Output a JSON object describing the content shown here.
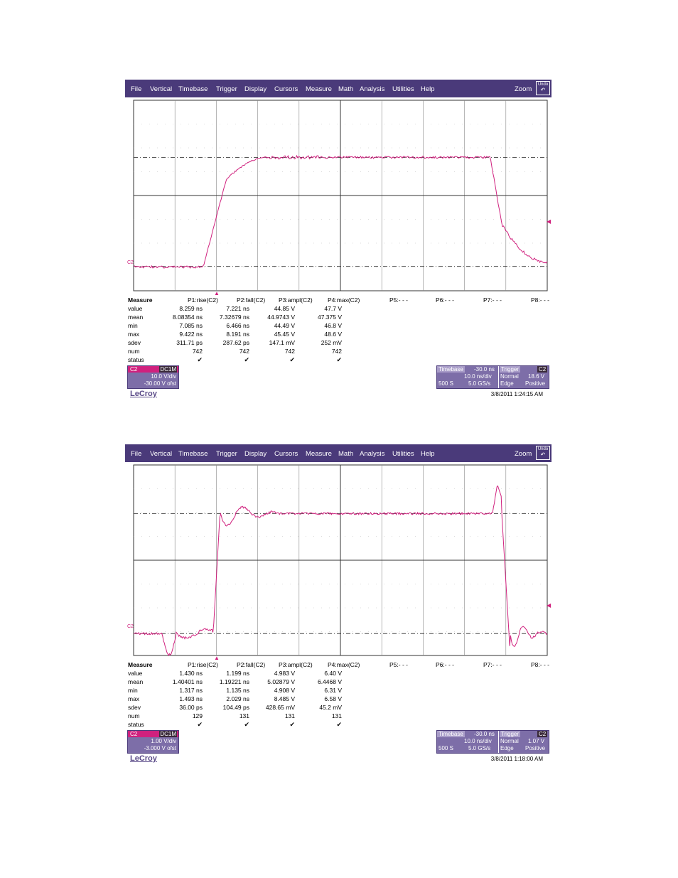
{
  "menu": {
    "items": [
      "File",
      "Vertical",
      "Timebase",
      "Trigger",
      "Display",
      "Cursors",
      "Measure",
      "Math",
      "Analysis",
      "Utilities",
      "Help"
    ],
    "zoom_label": "Zoom",
    "undo_label": "Undo"
  },
  "colors": {
    "menubar": "#4a3a7a",
    "trace": "#d0217e",
    "panel": "#7d6ea8"
  },
  "brand": "LeCroy",
  "scopes": [
    {
      "channel_marker": "C2",
      "measure": {
        "title": "Measure",
        "row_labels": [
          "value",
          "mean",
          "min",
          "max",
          "sdev",
          "num",
          "status"
        ],
        "params": [
          {
            "name": "P1:rise(C2)",
            "value": "8.259 ns",
            "mean": "8.08354 ns",
            "min": "7.085 ns",
            "max": "9.422 ns",
            "sdev": "311.71 ps",
            "num": "742",
            "status": "✔"
          },
          {
            "name": "P2:fall(C2)",
            "value": "7.221 ns",
            "mean": "7.32679 ns",
            "min": "6.466 ns",
            "max": "8.191 ns",
            "sdev": "287.62 ps",
            "num": "742",
            "status": "✔"
          },
          {
            "name": "P3:ampl(C2)",
            "value": "44.85 V",
            "mean": "44.9743 V",
            "min": "44.49 V",
            "max": "45.45 V",
            "sdev": "147.1 mV",
            "num": "742",
            "status": "✔"
          },
          {
            "name": "P4:max(C2)",
            "value": "47.7 V",
            "mean": "47.375 V",
            "min": "46.8 V",
            "max": "48.6 V",
            "sdev": "252 mV",
            "num": "742",
            "status": "✔"
          },
          {
            "name": "P5:- - -"
          },
          {
            "name": "P6:- - -"
          },
          {
            "name": "P7:- - -"
          },
          {
            "name": "P8:- - -"
          }
        ]
      },
      "channel_box": {
        "label": "C2",
        "coupling": "DC1M",
        "vdiv": "10.0 V/div",
        "offset": "-30.00 V ofst"
      },
      "timebase": {
        "label": "Timebase",
        "delay": "-30.0 ns",
        "tdiv": "10.0 ns/div",
        "samples": "500 S",
        "rate": "5.0 GS/s"
      },
      "trigger": {
        "label": "Trigger",
        "channel": "C2",
        "mode": "Normal",
        "level": "18.6 V",
        "type": "Edge",
        "slope": "Positive"
      },
      "timestamp": "3/8/2011 1:24:15 AM"
    },
    {
      "channel_marker": "C2",
      "measure": {
        "title": "Measure",
        "row_labels": [
          "value",
          "mean",
          "min",
          "max",
          "sdev",
          "num",
          "status"
        ],
        "params": [
          {
            "name": "P1:rise(C2)",
            "value": "1.430 ns",
            "mean": "1.40401 ns",
            "min": "1.317 ns",
            "max": "1.493 ns",
            "sdev": "36.00 ps",
            "num": "129",
            "status": "✔"
          },
          {
            "name": "P2:fall(C2)",
            "value": "1.199 ns",
            "mean": "1.19221 ns",
            "min": "1.135 ns",
            "max": "2.029 ns",
            "sdev": "104.49 ps",
            "num": "131",
            "status": "✔"
          },
          {
            "name": "P3:ampl(C2)",
            "value": "4.983 V",
            "mean": "5.02879 V",
            "min": "4.908 V",
            "max": "8.485 V",
            "sdev": "428.65 mV",
            "num": "131",
            "status": "✔"
          },
          {
            "name": "P4:max(C2)",
            "value": "6.40 V",
            "mean": "6.4468 V",
            "min": "6.31 V",
            "max": "6.58 V",
            "sdev": "45.2 mV",
            "num": "131",
            "status": "✔"
          },
          {
            "name": "P5:- - -"
          },
          {
            "name": "P6:- - -"
          },
          {
            "name": "P7:- - -"
          },
          {
            "name": "P8:- - -"
          }
        ]
      },
      "channel_box": {
        "label": "C2",
        "coupling": "DC1M",
        "vdiv": "1.00 V/div",
        "offset": "-3.000 V ofst"
      },
      "timebase": {
        "label": "Timebase",
        "delay": "-30.0 ns",
        "tdiv": "10.0 ns/div",
        "samples": "500 S",
        "rate": "5.0 GS/s"
      },
      "trigger": {
        "label": "Trigger",
        "channel": "C2",
        "mode": "Normal",
        "level": "1.07 V",
        "type": "Edge",
        "slope": "Positive"
      },
      "timestamp": "3/8/2011 1:18:00 AM"
    }
  ]
}
